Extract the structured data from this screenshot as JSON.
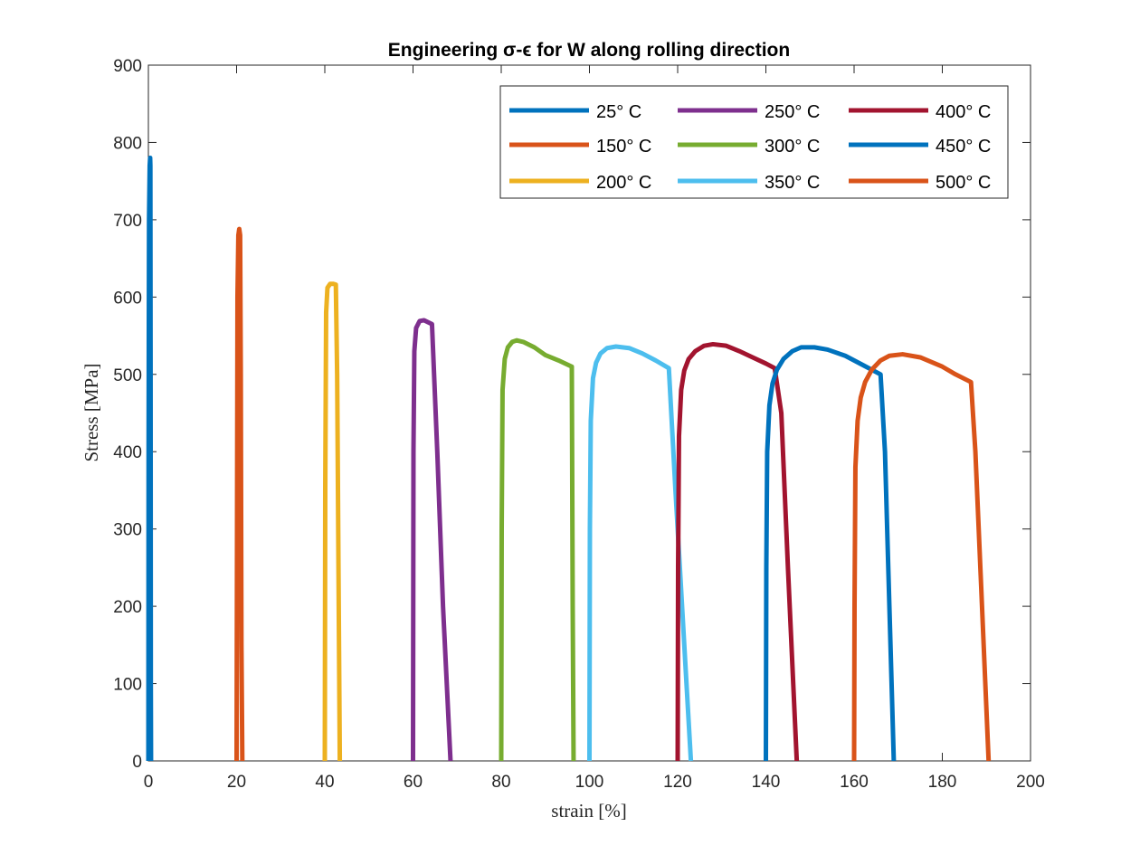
{
  "chart_data": {
    "type": "line",
    "title": "Engineering  σ-ϵ for W along rolling direction",
    "xlabel": "strain [%]",
    "ylabel": "Stress [MPa]",
    "xlim": [
      0,
      200
    ],
    "ylim": [
      0,
      900
    ],
    "xticks": [
      "0",
      "20",
      "40",
      "60",
      "80",
      "100",
      "120",
      "140",
      "160",
      "180",
      "200"
    ],
    "yticks": [
      "0",
      "100",
      "200",
      "300",
      "400",
      "500",
      "600",
      "700",
      "800",
      "900"
    ],
    "grid": false,
    "legend_position": "top-right",
    "series": [
      {
        "name": "25° C",
        "color": "#0072BD",
        "x": [
          0.0,
          0.05,
          0.15,
          0.3,
          0.4,
          0.45,
          0.5,
          0.55,
          0.6
        ],
        "y": [
          0,
          400,
          700,
          770,
          780,
          770,
          500,
          100,
          0
        ]
      },
      {
        "name": "150° C",
        "color": "#D95319",
        "x": [
          20.0,
          20.1,
          20.2,
          20.4,
          20.6,
          20.8,
          20.95,
          21.1,
          21.3
        ],
        "y": [
          0,
          300,
          600,
          680,
          688,
          680,
          500,
          150,
          0
        ]
      },
      {
        "name": "200° C",
        "color": "#EDB120",
        "x": [
          40.0,
          40.1,
          40.3,
          40.6,
          41.2,
          42.0,
          42.5,
          42.8,
          43.4
        ],
        "y": [
          0,
          350,
          580,
          612,
          617,
          617,
          616,
          500,
          0
        ]
      },
      {
        "name": "250° C",
        "color": "#7E2F8E",
        "x": [
          60.0,
          60.1,
          60.3,
          60.7,
          61.5,
          62.5,
          64.3,
          65.5,
          66.8,
          68.5
        ],
        "y": [
          0,
          400,
          530,
          560,
          569,
          570,
          565,
          400,
          200,
          0
        ]
      },
      {
        "name": "300° C",
        "color": "#77AC30",
        "x": [
          80.0,
          80.1,
          80.3,
          80.8,
          81.5,
          82.5,
          83.5,
          85.0,
          87.5,
          90.0,
          93.0,
          96.0,
          96.2,
          96.4
        ],
        "y": [
          0,
          300,
          480,
          520,
          535,
          542,
          544,
          542,
          535,
          525,
          518,
          510,
          200,
          0
        ]
      },
      {
        "name": "350° C",
        "color": "#4DBEEE",
        "x": [
          100.0,
          100.1,
          100.3,
          100.8,
          101.5,
          102.5,
          104.0,
          106.0,
          109.0,
          112.0,
          115.0,
          118.0,
          119.5,
          121.5,
          123.0
        ],
        "y": [
          0,
          300,
          440,
          495,
          515,
          527,
          534,
          536,
          534,
          527,
          518,
          508,
          350,
          150,
          0
        ]
      },
      {
        "name": "400° C",
        "color": "#A2142F",
        "x": [
          120.0,
          120.1,
          120.3,
          120.8,
          121.5,
          122.5,
          124.0,
          126.0,
          128.0,
          131.0,
          134.0,
          137.0,
          140.0,
          142.0,
          143.5,
          145.0,
          147.0
        ],
        "y": [
          0,
          250,
          420,
          480,
          505,
          520,
          530,
          537,
          539,
          537,
          530,
          522,
          514,
          508,
          450,
          250,
          0
        ]
      },
      {
        "name": "450° C",
        "color": "#0072BD",
        "x": [
          140.0,
          140.1,
          140.3,
          140.8,
          141.5,
          142.5,
          144.0,
          146.0,
          148.0,
          151.0,
          154.0,
          158.0,
          162.0,
          166.0,
          167.0,
          168.0,
          169.0
        ],
        "y": [
          0,
          250,
          400,
          460,
          488,
          506,
          520,
          530,
          535,
          535,
          532,
          524,
          512,
          500,
          400,
          200,
          0
        ]
      },
      {
        "name": "500° C",
        "color": "#D95319",
        "x": [
          160.0,
          160.1,
          160.3,
          160.8,
          161.5,
          162.5,
          164.0,
          166.0,
          168.0,
          171.0,
          175.0,
          180.0,
          183.0,
          186.5,
          187.5,
          189.0,
          190.5
        ],
        "y": [
          0,
          200,
          380,
          440,
          470,
          490,
          506,
          518,
          524,
          526,
          522,
          510,
          500,
          490,
          400,
          200,
          0
        ]
      }
    ]
  }
}
